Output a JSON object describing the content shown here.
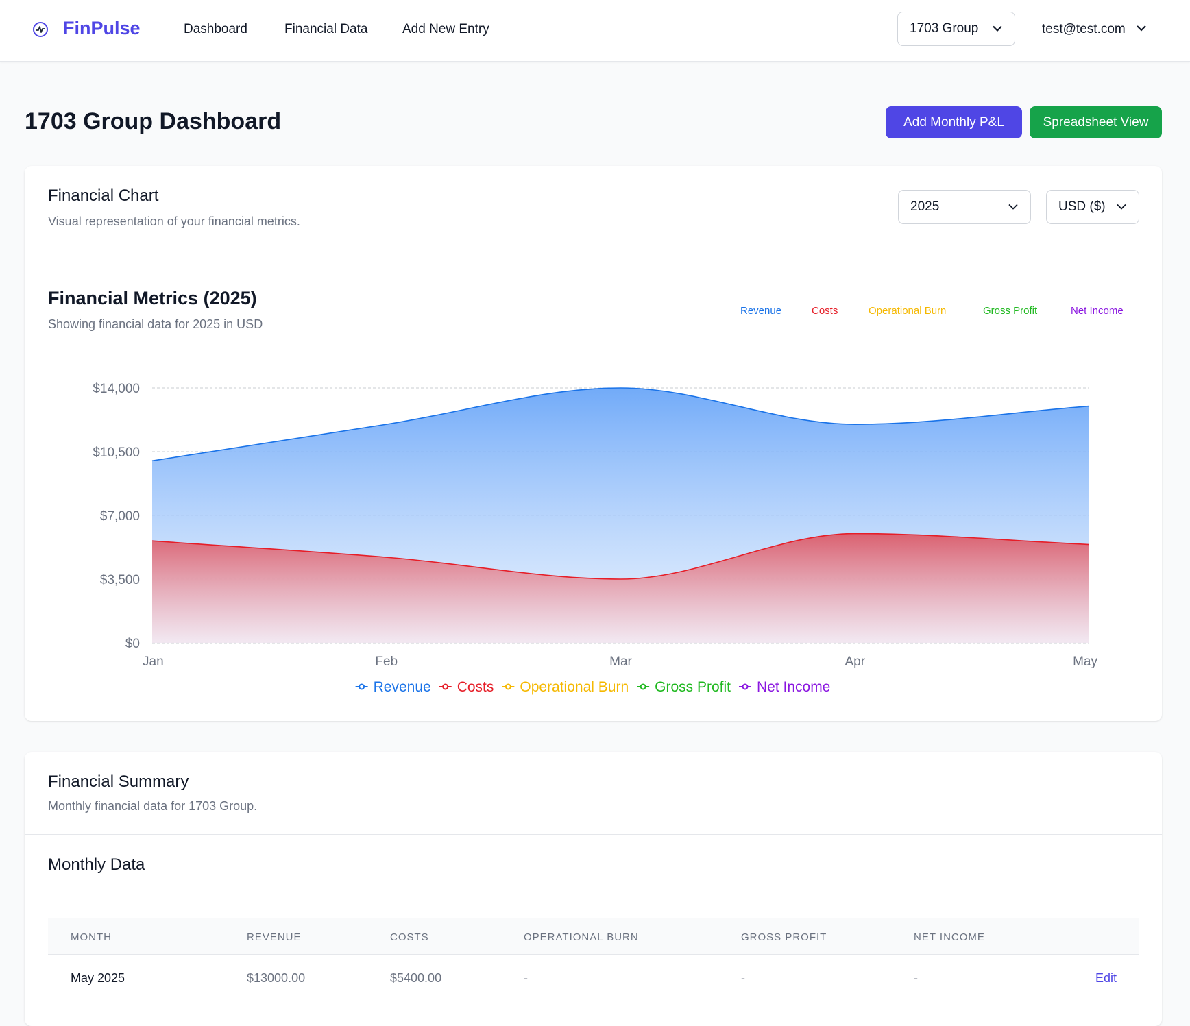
{
  "header": {
    "brand": "FinPulse",
    "nav": [
      "Dashboard",
      "Financial Data",
      "Add New Entry"
    ],
    "group_select": "1703 Group",
    "user_email": "test@test.com"
  },
  "page": {
    "title": "1703 Group Dashboard",
    "add_button": "Add Monthly P&L",
    "spreadsheet_button": "Spreadsheet View"
  },
  "chart_card": {
    "title": "Financial Chart",
    "subtitle": "Visual representation of your financial metrics.",
    "year_select": "2025",
    "currency_select": "USD ($)",
    "heading": "Financial Metrics (2025)",
    "heading_sub": "Showing financial data for 2025 in USD"
  },
  "colors": {
    "revenue": "#1a73e8",
    "costs": "#e61e28",
    "operational_burn": "#f5b800",
    "gross_profit": "#1fb81f",
    "net_income": "#8a16e0"
  },
  "chart_data": {
    "type": "area",
    "categories": [
      "Jan",
      "Feb",
      "Mar",
      "Apr",
      "May"
    ],
    "series": [
      {
        "name": "Revenue",
        "values": [
          10000,
          12000,
          14000,
          12000,
          13000
        ]
      },
      {
        "name": "Costs",
        "values": [
          5600,
          4700,
          3500,
          6000,
          5400
        ]
      },
      {
        "name": "Operational Burn",
        "values": [
          null,
          null,
          null,
          null,
          null
        ]
      },
      {
        "name": "Gross Profit",
        "values": [
          null,
          null,
          null,
          null,
          null
        ]
      },
      {
        "name": "Net Income",
        "values": [
          null,
          null,
          null,
          null,
          null
        ]
      }
    ],
    "y_ticks": [
      "$0",
      "$3,500",
      "$7,000",
      "$10,500",
      "$14,000"
    ],
    "ylim": [
      0,
      14000
    ],
    "legend": [
      "Revenue",
      "Costs",
      "Operational Burn",
      "Gross Profit",
      "Net Income"
    ],
    "legend_placement": "bottom",
    "grid": true
  },
  "summary_card": {
    "title": "Financial Summary",
    "subtitle": "Monthly financial data for 1703 Group.",
    "section_title": "Monthly Data",
    "columns": [
      "MONTH",
      "REVENUE",
      "COSTS",
      "OPERATIONAL BURN",
      "GROSS PROFIT",
      "NET INCOME"
    ],
    "rows": [
      {
        "month": "May 2025",
        "revenue": "$13000.00",
        "costs": "$5400.00",
        "burn": "-",
        "gross": "-",
        "net": "-",
        "action": "Edit"
      }
    ]
  }
}
